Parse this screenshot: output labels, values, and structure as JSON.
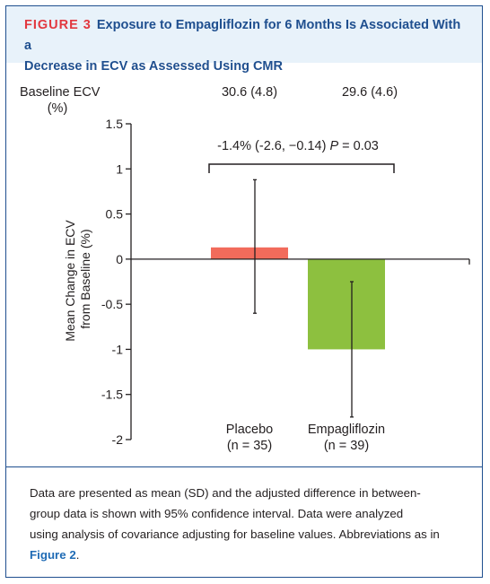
{
  "figure": {
    "label": "FIGURE 3",
    "title_line1": "Exposure to Empagliflozin for 6 Months Is Associated With a",
    "title_line2": "Decrease in ECV as Assessed Using CMR",
    "colors": {
      "header_bg": "#e8f2fa",
      "border": "#1f4f8f",
      "label": "#e2383f",
      "link": "#1f6bb5"
    }
  },
  "chart_data": {
    "type": "bar",
    "categories": [
      "Placebo",
      "Empagliflozin"
    ],
    "category_sublabels": [
      "(n = 35)",
      "(n = 39)"
    ],
    "values": [
      0.13,
      -1.0
    ],
    "error_low": [
      -0.6,
      -1.75
    ],
    "error_high": [
      0.88,
      -0.25
    ],
    "colors": [
      "#f26b5b",
      "#8dc03f"
    ],
    "ylabel_line1": "Mean Change in ECV",
    "ylabel_line2": "from Baseline (%)",
    "ylim": [
      -2,
      1.5
    ],
    "yticks": [
      1.5,
      1,
      0.5,
      0,
      -0.5,
      -1,
      -1.5,
      -2
    ],
    "ytick_labels": [
      "1.5",
      "1",
      "0.5",
      "0",
      "-0.5",
      "-1",
      "-1.5",
      "-2"
    ],
    "baseline_label_line1": "Baseline  ECV",
    "baseline_label_line2": "(%)",
    "baseline_values": [
      "30.6 (4.8)",
      "29.6 (4.6)"
    ],
    "annotation_prefix": "-1.4% (-2.6, −0.14)",
    "annotation_p": "P",
    "annotation_suffix": " = 0.03"
  },
  "caption": {
    "line1": "Data are presented as mean (SD) and the adjusted difference in between-",
    "line2": "group data is shown with 95% confidence interval. Data were analyzed",
    "line3": "using analysis of covariance adjusting for baseline values. Abbreviations as in",
    "link": "Figure 2",
    "end": "."
  }
}
